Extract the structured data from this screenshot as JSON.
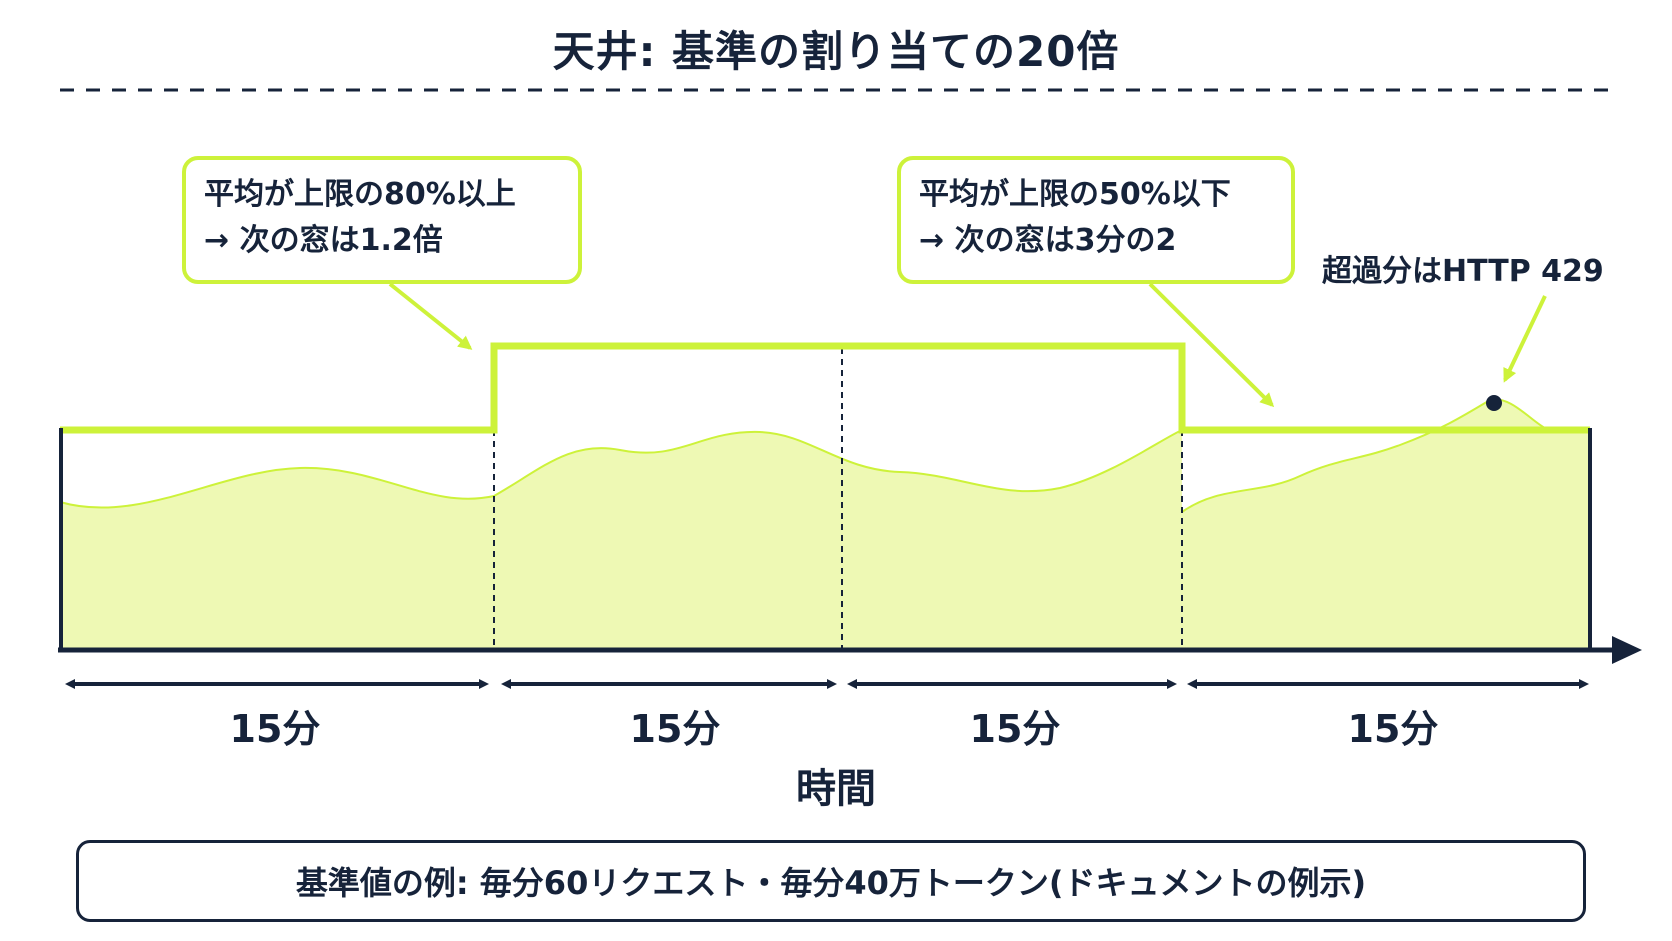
{
  "title": "天井: 基準の割り当ての20倍",
  "callouts": {
    "increase": {
      "line1": "平均が上限の80%以上",
      "line2": "→ 次の窓は1.2倍"
    },
    "decrease": {
      "line1": "平均が上限の50%以下",
      "line2": "→ 次の窓は3分の2"
    }
  },
  "overflow_note": "超過分はHTTP 429",
  "windows": [
    {
      "duration": "15分",
      "limit_level": 1.0
    },
    {
      "duration": "15分",
      "limit_level": 1.2
    },
    {
      "duration": "15分",
      "limit_level": 1.2
    },
    {
      "duration": "15分",
      "limit_level": 1.0
    }
  ],
  "x_axis_label": "時間",
  "footer": "基準値の例: 毎分60リクエスト・毎分40万トークン(ドキュメントの例示)",
  "colors": {
    "accent": "#cdf23a",
    "fill": "#eef9b4",
    "ink": "#16233a"
  }
}
